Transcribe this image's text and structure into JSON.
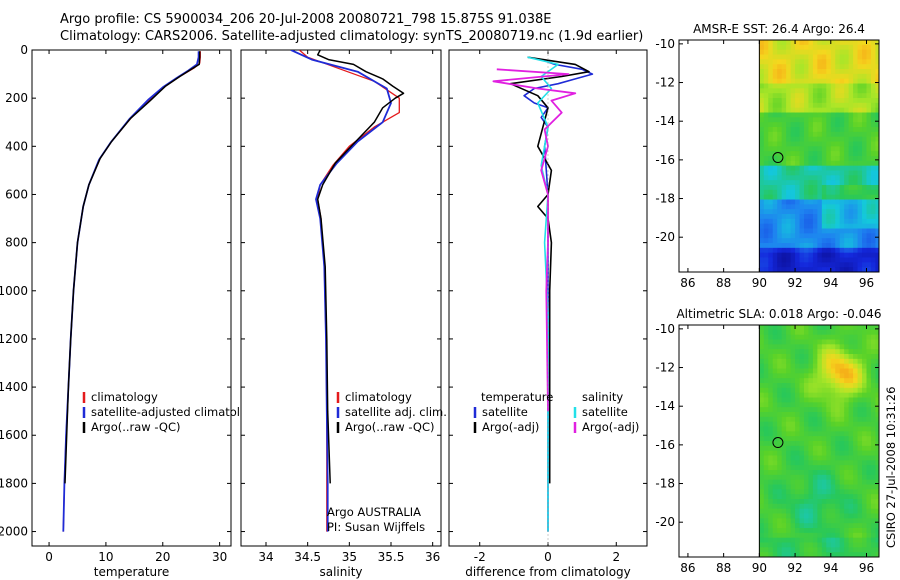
{
  "header": {
    "line1": "Argo profile: CS 5900034_206 20-Jul-2008 20080721_798 15.875S 91.038E",
    "line2": "Climatology: CARS2006. Satellite-adjusted climatology: synTS_20080719.nc (1.9d earlier)"
  },
  "colors": {
    "climatology": "#e41a1c",
    "satellite": "#1f2bd6",
    "argo": "#000000",
    "satellite_cyan": "#22e0e8",
    "argo_magenta": "#e020e0"
  },
  "credit": "CSIRO 27-Jul-2008 10:31:26",
  "chart_data": [
    {
      "type": "line",
      "id": "temperature",
      "xlabel": "temperature",
      "xlim": [
        -3,
        32
      ],
      "ylim": [
        2060,
        0
      ],
      "xticks": [
        0,
        10,
        20,
        30
      ],
      "yticks": [
        0,
        200,
        400,
        600,
        800,
        1000,
        1200,
        1400,
        1600,
        1800,
        2000
      ],
      "legend": [
        "climatology",
        "satellite-adjusted climatology",
        "Argo(..raw -QC)"
      ],
      "series": [
        {
          "name": "climatology",
          "color": "climatology",
          "width": 1.3,
          "points": [
            [
              26.6,
              5
            ],
            [
              26.6,
              30
            ],
            [
              26.5,
              55
            ],
            [
              25.5,
              75
            ],
            [
              23,
              110
            ],
            [
              20.5,
              150
            ],
            [
              18,
              200
            ],
            [
              14.5,
              280
            ],
            [
              11,
              380
            ],
            [
              9,
              450
            ],
            [
              7,
              560
            ],
            [
              6,
              650
            ],
            [
              5,
              800
            ],
            [
              4.3,
              1000
            ],
            [
              3.8,
              1200
            ],
            [
              3.4,
              1400
            ],
            [
              3.0,
              1600
            ],
            [
              2.7,
              1800
            ],
            [
              2.5,
              2000
            ]
          ]
        },
        {
          "name": "satellite-adjusted climatology",
          "color": "satellite",
          "width": 1.8,
          "points": [
            [
              26.3,
              5
            ],
            [
              26.3,
              30
            ],
            [
              26.0,
              60
            ],
            [
              24.5,
              85
            ],
            [
              22.5,
              115
            ],
            [
              20,
              155
            ],
            [
              17.5,
              205
            ],
            [
              14.2,
              285
            ],
            [
              10.8,
              385
            ],
            [
              8.8,
              455
            ],
            [
              7,
              560
            ],
            [
              6,
              650
            ],
            [
              5,
              800
            ],
            [
              4.3,
              1000
            ],
            [
              3.8,
              1200
            ],
            [
              3.4,
              1400
            ],
            [
              3.0,
              1600
            ],
            [
              2.7,
              1800
            ],
            [
              2.5,
              2000
            ]
          ]
        },
        {
          "name": "Argo(..raw -QC)",
          "color": "argo",
          "width": 1.5,
          "points": [
            [
              26.5,
              5
            ],
            [
              26.5,
              30
            ],
            [
              26.4,
              60
            ],
            [
              25,
              80
            ],
            [
              23,
              110
            ],
            [
              20.5,
              150
            ],
            [
              17.8,
              210
            ],
            [
              14.3,
              285
            ],
            [
              11,
              380
            ],
            [
              9,
              450
            ],
            [
              7,
              560
            ],
            [
              6,
              650
            ],
            [
              5,
              800
            ],
            [
              4.3,
              1000
            ],
            [
              3.8,
              1200
            ],
            [
              3.4,
              1400
            ],
            [
              3.1,
              1600
            ],
            [
              2.8,
              1800
            ]
          ]
        }
      ]
    },
    {
      "type": "line",
      "id": "salinity",
      "xlabel": "salinity",
      "xlim": [
        33.7,
        36.1
      ],
      "ylim": [
        2060,
        0
      ],
      "xticks": [
        34,
        34.5,
        35,
        35.5,
        36
      ],
      "yticks": [
        0,
        200,
        400,
        600,
        800,
        1000,
        1200,
        1400,
        1600,
        1800,
        2000
      ],
      "legend": [
        "climatology",
        "satellite adj. clim.",
        "Argo(..raw -QC)"
      ],
      "annotations": [
        "Argo AUSTRALIA",
        "PI: Susan Wijffels"
      ],
      "series": [
        {
          "name": "climatology",
          "color": "climatology",
          "width": 1.3,
          "points": [
            [
              34.4,
              0
            ],
            [
              34.5,
              30
            ],
            [
              34.9,
              80
            ],
            [
              35.3,
              130
            ],
            [
              35.6,
              200
            ],
            [
              35.6,
              260
            ],
            [
              35.3,
              320
            ],
            [
              35.0,
              400
            ],
            [
              34.8,
              480
            ],
            [
              34.65,
              560
            ],
            [
              34.62,
              620
            ],
            [
              34.66,
              700
            ],
            [
              34.7,
              900
            ],
            [
              34.72,
              1200
            ],
            [
              34.73,
              1500
            ],
            [
              34.73,
              1800
            ],
            [
              34.73,
              2000
            ]
          ]
        },
        {
          "name": "satellite adj. clim.",
          "color": "satellite",
          "width": 1.8,
          "points": [
            [
              34.3,
              0
            ],
            [
              34.55,
              40
            ],
            [
              35.1,
              90
            ],
            [
              35.45,
              160
            ],
            [
              35.5,
              220
            ],
            [
              35.4,
              300
            ],
            [
              35.1,
              380
            ],
            [
              34.85,
              470
            ],
            [
              34.65,
              560
            ],
            [
              34.6,
              620
            ],
            [
              34.65,
              700
            ],
            [
              34.7,
              900
            ],
            [
              34.72,
              1200
            ],
            [
              34.73,
              1500
            ],
            [
              34.74,
              1800
            ],
            [
              34.74,
              2000
            ]
          ]
        },
        {
          "name": "Argo(..raw -QC)",
          "color": "argo",
          "width": 1.5,
          "points": [
            [
              34.65,
              0
            ],
            [
              34.62,
              20
            ],
            [
              34.75,
              40
            ],
            [
              35.05,
              60
            ],
            [
              35.2,
              90
            ],
            [
              35.4,
              120
            ],
            [
              35.52,
              150
            ],
            [
              35.65,
              180
            ],
            [
              35.55,
              200
            ],
            [
              35.4,
              240
            ],
            [
              35.3,
              300
            ],
            [
              35.05,
              390
            ],
            [
              34.83,
              470
            ],
            [
              34.68,
              560
            ],
            [
              34.62,
              620
            ],
            [
              34.66,
              700
            ],
            [
              34.71,
              900
            ],
            [
              34.73,
              1200
            ],
            [
              34.74,
              1500
            ],
            [
              34.77,
              1800
            ]
          ]
        }
      ]
    },
    {
      "type": "line",
      "id": "difference",
      "xlabel": "difference from climatology",
      "xlim": [
        -2.9,
        2.9
      ],
      "ylim": [
        2060,
        0
      ],
      "xticks": [
        -2,
        0,
        2
      ],
      "yticks": [
        0,
        200,
        400,
        600,
        800,
        1000,
        1200,
        1400,
        1600,
        1800,
        2000
      ],
      "legend_temperature": {
        "title": "temperature",
        "items": [
          "satellite",
          "Argo(-adj)"
        ]
      },
      "legend_salinity": {
        "title": "salinity",
        "items": [
          "satellite",
          "Argo(-adj)"
        ]
      },
      "series": [
        {
          "name": "temperature satellite",
          "color": "satellite",
          "width": 1.6,
          "points": [
            [
              -0.2,
              40
            ],
            [
              0.2,
              60
            ],
            [
              1.0,
              80
            ],
            [
              1.3,
              100
            ],
            [
              0.8,
              120
            ],
            [
              0.3,
              140
            ],
            [
              -0.4,
              160
            ],
            [
              -0.7,
              190
            ],
            [
              -0.4,
              220
            ],
            [
              0,
              240
            ],
            [
              -0.2,
              280
            ],
            [
              0,
              320
            ],
            [
              -0.1,
              400
            ],
            [
              0,
              600
            ],
            [
              0,
              1000
            ],
            [
              0,
              1500
            ],
            [
              0,
              2000
            ]
          ]
        },
        {
          "name": "temperature Argo(-adj)",
          "color": "argo",
          "width": 1.6,
          "points": [
            [
              -0.6,
              30
            ],
            [
              0.8,
              60
            ],
            [
              1.2,
              90
            ],
            [
              0.4,
              110
            ],
            [
              -1.1,
              140
            ],
            [
              -0.3,
              190
            ],
            [
              0,
              240
            ],
            [
              -0.3,
              400
            ],
            [
              0.1,
              500
            ],
            [
              0,
              600
            ],
            [
              -0.3,
              650
            ],
            [
              0,
              700
            ],
            [
              0.1,
              800
            ],
            [
              0.05,
              1000
            ],
            [
              0.05,
              1500
            ],
            [
              0.05,
              1800
            ]
          ]
        },
        {
          "name": "salinity satellite",
          "color": "satellite_cyan",
          "width": 1.6,
          "points": [
            [
              -0.6,
              30
            ],
            [
              0.3,
              60
            ],
            [
              -0.2,
              110
            ],
            [
              0.1,
              160
            ],
            [
              -0.3,
              220
            ],
            [
              0,
              320
            ],
            [
              -0.2,
              480
            ],
            [
              0,
              600
            ],
            [
              -0.1,
              800
            ],
            [
              0,
              1100
            ],
            [
              0,
              1500
            ],
            [
              0,
              2000
            ]
          ]
        },
        {
          "name": "salinity Argo(-adj)",
          "color": "argo_magenta",
          "width": 1.8,
          "points": [
            [
              -1.5,
              80
            ],
            [
              0.6,
              100
            ],
            [
              -1.6,
              130
            ],
            [
              -0.3,
              160
            ],
            [
              0.8,
              180
            ],
            [
              0.1,
              210
            ],
            [
              0.4,
              260
            ],
            [
              -0.1,
              330
            ],
            [
              0,
              400
            ],
            [
              -0.2,
              500
            ],
            [
              0,
              600
            ],
            [
              0,
              800
            ],
            [
              -0.05,
              1000
            ],
            [
              0,
              1500
            ]
          ]
        }
      ]
    },
    {
      "type": "heatmap",
      "id": "sst-map",
      "title": "AMSR-E SST: 26.4 Argo: 26.4",
      "xlim": [
        85.5,
        96.7
      ],
      "ylim": [
        -21.8,
        -9.8
      ],
      "xticks": [
        86,
        88,
        90,
        92,
        94,
        96
      ],
      "yticks": [
        -10,
        -12,
        -14,
        -16,
        -18,
        -20
      ],
      "data_lon_min": 90.0,
      "marker": [
        91.04,
        -15.88
      ]
    },
    {
      "type": "heatmap",
      "id": "sla-map",
      "title": "Altimetric SLA: 0.018 Argo: -0.046",
      "xlim": [
        85.5,
        96.7
      ],
      "ylim": [
        -21.8,
        -9.8
      ],
      "xticks": [
        86,
        88,
        90,
        92,
        94,
        96
      ],
      "yticks": [
        -10,
        -12,
        -14,
        -16,
        -18,
        -20
      ],
      "data_lon_min": 90.0,
      "marker": [
        91.04,
        -15.88
      ]
    }
  ]
}
